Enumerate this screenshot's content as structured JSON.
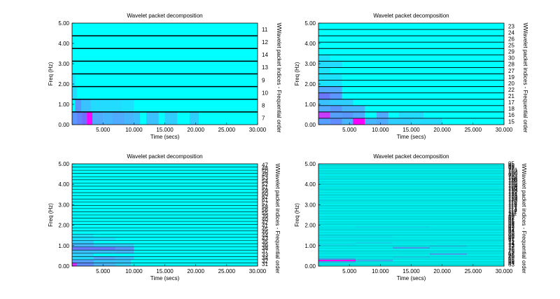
{
  "chart_data": [
    {
      "type": "heatmap",
      "title": "Wavelet packet decomposition",
      "xlabel": "Time (secs)",
      "ylabel": "Freq (Hz)",
      "right_label": "WWavelet packet indices - Frequential order",
      "xlim": [
        0,
        30
      ],
      "ylim": [
        0,
        5
      ],
      "xticks": [
        "5.000",
        "10.000",
        "15.000",
        "20.000",
        "25.000",
        "30.000"
      ],
      "yticks": [
        "0.00",
        "1.00",
        "2.00",
        "3.00",
        "4.00",
        "5.00"
      ],
      "bands": 8,
      "indices": [
        "11",
        "12",
        "14",
        "13",
        "9",
        "10",
        "8",
        "7"
      ],
      "cells": [
        {
          "band": 0,
          "t0": 0.0,
          "t1": 0.8,
          "level": 0.45
        },
        {
          "band": 0,
          "t0": 0.8,
          "t1": 1.6,
          "level": 0.55
        },
        {
          "band": 0,
          "t0": 1.6,
          "t1": 2.4,
          "level": 0.65
        },
        {
          "band": 0,
          "t0": 2.4,
          "t1": 3.3,
          "level": 1.0
        },
        {
          "band": 0,
          "t0": 3.3,
          "t1": 5.0,
          "level": 0.35
        },
        {
          "band": 0,
          "t0": 5.0,
          "t1": 6.5,
          "level": 0.3
        },
        {
          "band": 0,
          "t0": 6.5,
          "t1": 8.5,
          "level": 0.35
        },
        {
          "band": 0,
          "t0": 8.5,
          "t1": 10.0,
          "level": 0.3
        },
        {
          "band": 0,
          "t0": 10.0,
          "t1": 11.0,
          "level": 0.25
        },
        {
          "band": 0,
          "t0": 12.0,
          "t1": 14.0,
          "level": 0.25
        },
        {
          "band": 0,
          "t0": 15.0,
          "t1": 17.0,
          "level": 0.2
        },
        {
          "band": 0,
          "t0": 19.0,
          "t1": 20.5,
          "level": 0.2
        },
        {
          "band": 1,
          "t0": 0.5,
          "t1": 1.5,
          "level": 0.45
        },
        {
          "band": 1,
          "t0": 1.5,
          "t1": 3.0,
          "level": 0.25
        },
        {
          "band": 1,
          "t0": 3.0,
          "t1": 8.0,
          "level": 0.15
        },
        {
          "band": 1,
          "t0": 8.0,
          "t1": 10.0,
          "level": 0.12
        },
        {
          "band": 2,
          "t0": 0.0,
          "t1": 0.8,
          "level": 0.15
        },
        {
          "band": 3,
          "t0": 0.0,
          "t1": 0.5,
          "level": 0.12
        }
      ]
    },
    {
      "type": "heatmap",
      "title": "Wavelet packet decomposition",
      "xlabel": "Time (secs)",
      "ylabel": "Freq (Hz)",
      "right_label": "WWavelet packet indices - Frequential order",
      "xlim": [
        0,
        30
      ],
      "ylim": [
        0,
        5
      ],
      "xticks": [
        "5.000",
        "10.000",
        "15.000",
        "20.000",
        "25.000",
        "30.000"
      ],
      "yticks": [
        "0.00",
        "1.00",
        "2.00",
        "3.00",
        "4.00",
        "5.00"
      ],
      "bands": 16,
      "indices": [
        "23",
        "24",
        "26",
        "25",
        "29",
        "30",
        "28",
        "27",
        "19",
        "20",
        "22",
        "21",
        "17",
        "18",
        "16",
        "15"
      ],
      "cells": [
        {
          "band": 0,
          "t0": 0.0,
          "t1": 1.9,
          "level": 0.4
        },
        {
          "band": 0,
          "t0": 1.9,
          "t1": 3.8,
          "level": 0.5
        },
        {
          "band": 0,
          "t0": 3.8,
          "t1": 5.6,
          "level": 0.3
        },
        {
          "band": 0,
          "t0": 5.6,
          "t1": 7.5,
          "level": 1.0
        },
        {
          "band": 0,
          "t0": 7.5,
          "t1": 9.4,
          "level": 0.3
        },
        {
          "band": 0,
          "t0": 9.4,
          "t1": 11.3,
          "level": 0.35
        },
        {
          "band": 0,
          "t0": 11.3,
          "t1": 15.0,
          "level": 0.2
        },
        {
          "band": 0,
          "t0": 15.0,
          "t1": 20.0,
          "level": 0.15
        },
        {
          "band": 1,
          "t0": 0.0,
          "t1": 1.9,
          "level": 0.85
        },
        {
          "band": 1,
          "t0": 1.9,
          "t1": 3.8,
          "level": 0.4
        },
        {
          "band": 1,
          "t0": 3.8,
          "t1": 5.6,
          "level": 0.45
        },
        {
          "band": 1,
          "t0": 5.6,
          "t1": 7.5,
          "level": 0.35
        },
        {
          "band": 1,
          "t0": 9.4,
          "t1": 11.3,
          "level": 0.35
        },
        {
          "band": 1,
          "t0": 13.0,
          "t1": 17.0,
          "level": 0.15
        },
        {
          "band": 2,
          "t0": 0.0,
          "t1": 1.9,
          "level": 0.35
        },
        {
          "band": 2,
          "t0": 1.9,
          "t1": 3.8,
          "level": 0.45
        },
        {
          "band": 2,
          "t0": 3.8,
          "t1": 7.5,
          "level": 0.3
        },
        {
          "band": 3,
          "t0": 0.0,
          "t1": 1.9,
          "level": 0.25
        },
        {
          "band": 3,
          "t0": 1.9,
          "t1": 5.6,
          "level": 0.2
        },
        {
          "band": 4,
          "t0": 0.0,
          "t1": 1.9,
          "level": 0.6
        },
        {
          "band": 4,
          "t0": 1.9,
          "t1": 3.8,
          "level": 0.45
        },
        {
          "band": 5,
          "t0": 0.0,
          "t1": 3.8,
          "level": 0.35
        },
        {
          "band": 6,
          "t0": 0.0,
          "t1": 3.8,
          "level": 0.12
        },
        {
          "band": 7,
          "t0": 0.0,
          "t1": 3.8,
          "level": 0.12
        },
        {
          "band": 8,
          "t0": 0.0,
          "t1": 1.9,
          "level": 0.12
        },
        {
          "band": 9,
          "t0": 0.0,
          "t1": 3.8,
          "level": 0.15
        },
        {
          "band": 10,
          "t0": 0.0,
          "t1": 1.9,
          "level": 0.12
        }
      ]
    },
    {
      "type": "heatmap",
      "title": "Wavelet packet decomposition",
      "xlabel": "Time (secs)",
      "ylabel": "Freq (Hz)",
      "right_label": "WWavelet packet indices - Frequential order",
      "xlim": [
        0,
        30
      ],
      "ylim": [
        0,
        5
      ],
      "xticks": [
        "5.000",
        "10.000",
        "15.000",
        "20.000",
        "25.000",
        "30.000"
      ],
      "yticks": [
        "0.00",
        "1.00",
        "2.00",
        "3.00",
        "4.00",
        "5.00"
      ],
      "bands": 32,
      "indices": [
        "47",
        "48",
        "50",
        "49",
        "53",
        "54",
        "52",
        "51",
        "59",
        "60",
        "62",
        "61",
        "57",
        "58",
        "56",
        "55",
        "39",
        "40",
        "42",
        "41",
        "45",
        "46",
        "44",
        "43",
        "35",
        "36",
        "38",
        "37",
        "33",
        "34",
        "32",
        "31"
      ],
      "cells": [
        {
          "band": 0,
          "t0": 0.0,
          "t1": 0.8,
          "level": 0.9
        },
        {
          "band": 0,
          "t0": 0.8,
          "t1": 3.5,
          "level": 0.5
        },
        {
          "band": 0,
          "t0": 3.5,
          "t1": 7.0,
          "level": 0.3
        },
        {
          "band": 0,
          "t0": 7.0,
          "t1": 9.5,
          "level": 0.2
        },
        {
          "band": 1,
          "t0": 0.0,
          "t1": 3.5,
          "level": 0.4
        },
        {
          "band": 1,
          "t0": 3.5,
          "t1": 9.5,
          "level": 0.25
        },
        {
          "band": 2,
          "t0": 0.0,
          "t1": 3.5,
          "level": 0.15
        },
        {
          "band": 2,
          "t0": 3.5,
          "t1": 7.0,
          "level": 0.35
        },
        {
          "band": 2,
          "t0": 7.0,
          "t1": 10.0,
          "level": 0.25
        },
        {
          "band": 3,
          "t0": 0.0,
          "t1": 3.5,
          "level": 0.2
        },
        {
          "band": 4,
          "t0": 0.0,
          "t1": 7.0,
          "level": 0.25
        },
        {
          "band": 4,
          "t0": 7.0,
          "t1": 10.0,
          "level": 0.3
        },
        {
          "band": 5,
          "t0": 0.0,
          "t1": 7.0,
          "level": 0.6
        },
        {
          "band": 5,
          "t0": 7.0,
          "t1": 10.0,
          "level": 0.45
        },
        {
          "band": 6,
          "t0": 0.0,
          "t1": 3.5,
          "level": 0.3
        },
        {
          "band": 6,
          "t0": 3.5,
          "t1": 10.0,
          "level": 0.2
        },
        {
          "band": 7,
          "t0": 0.0,
          "t1": 3.5,
          "level": 0.2
        },
        {
          "band": 8,
          "t0": 0.0,
          "t1": 7.0,
          "level": 0.12
        },
        {
          "band": 9,
          "t0": 0.0,
          "t1": 3.5,
          "level": 0.12
        }
      ]
    },
    {
      "type": "heatmap",
      "title": "Wavelet packet decomposition",
      "xlabel": "Time (secs)",
      "ylabel": "Freq (Hz)",
      "right_label": "WWavelet packet indices - Frequential order",
      "xlim": [
        0,
        30
      ],
      "ylim": [
        0,
        5
      ],
      "xticks": [
        "5.000",
        "10.000",
        "15.000",
        "20.000",
        "25.000",
        "30.000"
      ],
      "yticks": [
        "0.00",
        "1.00",
        "2.00",
        "3.00",
        "4.00",
        "5.00"
      ],
      "bands": 64,
      "indices": [
        "95",
        "96",
        "98",
        "97",
        "101",
        "102",
        "100",
        "99",
        "107",
        "108",
        "110",
        "109",
        "105",
        "106",
        "104",
        "103",
        "119",
        "120",
        "122",
        "121",
        "125",
        "126",
        "124",
        "123",
        "115",
        "116",
        "118",
        "117",
        "113",
        "114",
        "112",
        "111",
        "79",
        "80",
        "82",
        "81",
        "85",
        "86",
        "84",
        "83",
        "91",
        "92",
        "94",
        "93",
        "89",
        "90",
        "88",
        "87",
        "71",
        "72",
        "74",
        "73",
        "77",
        "78",
        "76",
        "75",
        "67",
        "68",
        "70",
        "69",
        "65",
        "66",
        "64",
        "63"
      ],
      "cells": [
        {
          "band": 3,
          "t0": 0.0,
          "t1": 6.0,
          "level": 1.0
        },
        {
          "band": 3,
          "t0": 6.0,
          "t1": 12.0,
          "level": 0.3
        },
        {
          "band": 2,
          "t0": 0.0,
          "t1": 6.0,
          "level": 0.2
        },
        {
          "band": 4,
          "t0": 0.0,
          "t1": 6.0,
          "level": 0.25
        },
        {
          "band": 5,
          "t0": 12.0,
          "t1": 18.0,
          "level": 0.1
        },
        {
          "band": 7,
          "t0": 18.0,
          "t1": 24.0,
          "level": 0.3
        },
        {
          "band": 11,
          "t0": 12.0,
          "t1": 18.0,
          "level": 0.35
        },
        {
          "band": 12,
          "t0": 18.0,
          "t1": 24.0,
          "level": 0.12
        },
        {
          "band": 13,
          "t0": 0.0,
          "t1": 6.0,
          "level": 0.08
        },
        {
          "band": 14,
          "t0": 6.0,
          "t1": 12.0,
          "level": 0.08
        },
        {
          "band": 18,
          "t0": 0.0,
          "t1": 12.0,
          "level": 0.06
        },
        {
          "band": 24,
          "t0": 6.0,
          "t1": 18.0,
          "level": 0.06
        }
      ]
    }
  ]
}
